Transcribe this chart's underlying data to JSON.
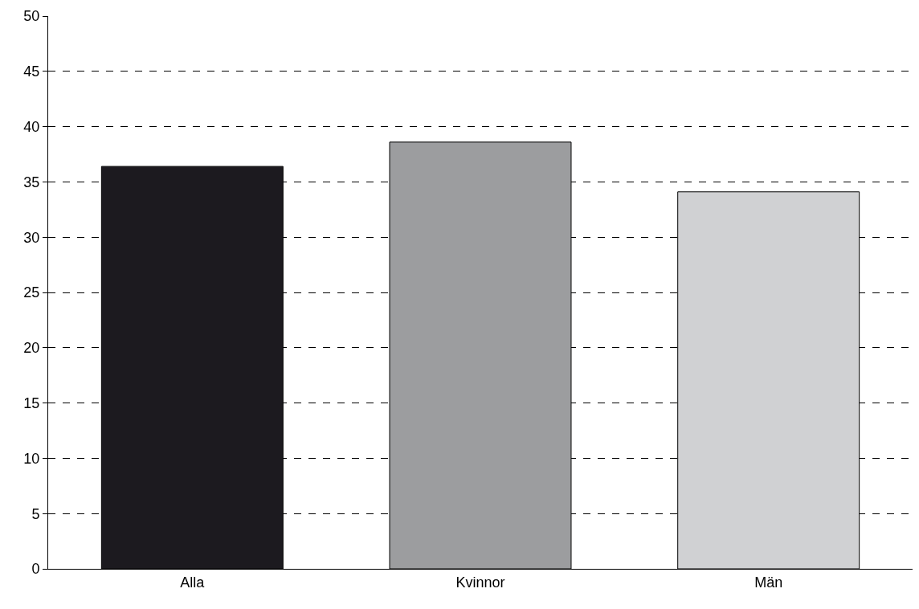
{
  "chart_data": {
    "type": "bar",
    "categories": [
      "Alla",
      "Kvinnor",
      "Män"
    ],
    "values": [
      36.4,
      38.6,
      34.1
    ],
    "colors": [
      "#1c1a1f",
      "#9c9d9f",
      "#d0d1d3"
    ],
    "ylim": [
      0,
      50
    ],
    "yticks": [
      0,
      5,
      10,
      15,
      20,
      25,
      30,
      35,
      40,
      45,
      50
    ],
    "grid": "y"
  }
}
